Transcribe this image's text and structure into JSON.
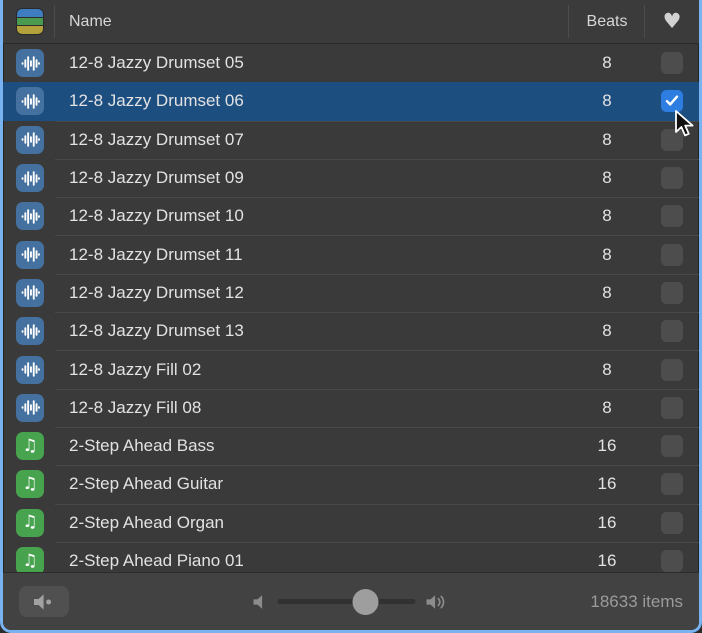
{
  "header": {
    "name_label": "Name",
    "beats_label": "Beats",
    "favorite_icon": "♥",
    "type_column_icon": "loop-type-stripes"
  },
  "rows": [
    {
      "name": "12-8 Jazzy Drumset 05",
      "beats": "8",
      "icon": "audio-loop",
      "favorite": false,
      "selected": false
    },
    {
      "name": "12-8 Jazzy Drumset 06",
      "beats": "8",
      "icon": "audio-loop",
      "favorite": true,
      "selected": true
    },
    {
      "name": "12-8 Jazzy Drumset 07",
      "beats": "8",
      "icon": "audio-loop",
      "favorite": false,
      "selected": false
    },
    {
      "name": "12-8 Jazzy Drumset 09",
      "beats": "8",
      "icon": "audio-loop",
      "favorite": false,
      "selected": false
    },
    {
      "name": "12-8 Jazzy Drumset 10",
      "beats": "8",
      "icon": "audio-loop",
      "favorite": false,
      "selected": false
    },
    {
      "name": "12-8 Jazzy Drumset 11",
      "beats": "8",
      "icon": "audio-loop",
      "favorite": false,
      "selected": false
    },
    {
      "name": "12-8 Jazzy Drumset 12",
      "beats": "8",
      "icon": "audio-loop",
      "favorite": false,
      "selected": false
    },
    {
      "name": "12-8 Jazzy Drumset 13",
      "beats": "8",
      "icon": "audio-loop",
      "favorite": false,
      "selected": false
    },
    {
      "name": "12-8 Jazzy Fill 02",
      "beats": "8",
      "icon": "audio-loop",
      "favorite": false,
      "selected": false
    },
    {
      "name": "12-8 Jazzy Fill 08",
      "beats": "8",
      "icon": "audio-loop",
      "favorite": false,
      "selected": false
    },
    {
      "name": "2-Step Ahead Bass",
      "beats": "16",
      "icon": "software-loop",
      "favorite": false,
      "selected": false
    },
    {
      "name": "2-Step Ahead Guitar",
      "beats": "16",
      "icon": "software-loop",
      "favorite": false,
      "selected": false
    },
    {
      "name": "2-Step Ahead Organ",
      "beats": "16",
      "icon": "software-loop",
      "favorite": false,
      "selected": false
    },
    {
      "name": "2-Step Ahead Piano 01",
      "beats": "16",
      "icon": "software-loop",
      "favorite": false,
      "selected": false
    }
  ],
  "bottom_bar": {
    "items_label": "18633 items",
    "volume_percent": 64
  },
  "colors": {
    "selection_blue": "#1d4e80",
    "checkbox_checked_blue": "#2e7de0",
    "audio_loop_icon_blue": "#44719f",
    "software_loop_icon_green": "#48a34f",
    "window_focus_border": "#78b2f0"
  }
}
